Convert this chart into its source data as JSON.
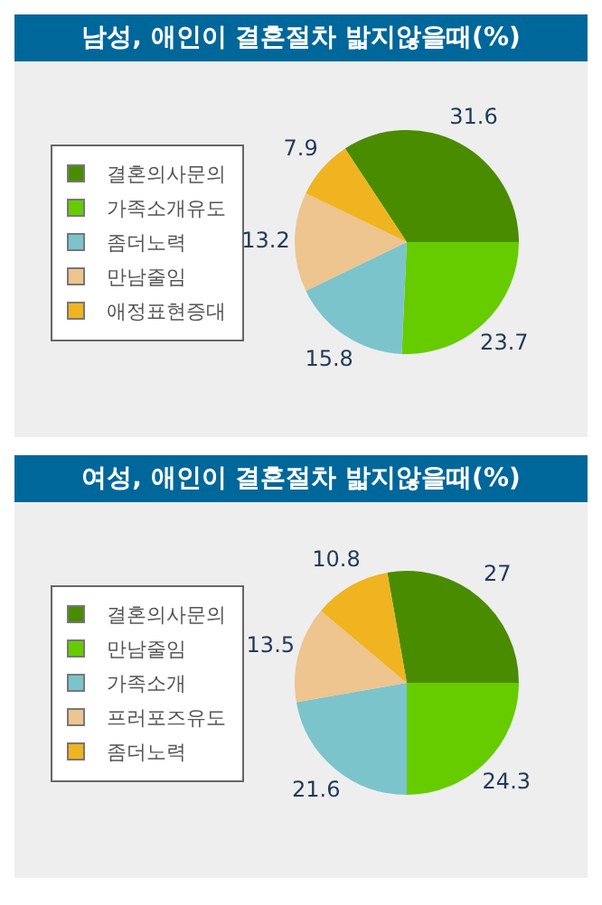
{
  "chart_data": [
    {
      "type": "pie",
      "title": "남성, 애인이 결혼절차 밟지않을때(%)",
      "categories": [
        "결혼의사문의",
        "가족소개유도",
        "좀더노력",
        "만남줄임",
        "애정표현증대"
      ],
      "values": [
        31.6,
        23.7,
        15.8,
        13.2,
        7.9
      ],
      "colors": [
        "#4a8c00",
        "#66cc00",
        "#7cc4cc",
        "#eec48f",
        "#f0b420"
      ],
      "data_labels": true,
      "legend": "left"
    },
    {
      "type": "pie",
      "title": "여성, 애인이 결혼절차 밟지않을때(%)",
      "categories": [
        "결혼의사문의",
        "만남줄임",
        "가족소개",
        "프러포즈유도",
        "좀더노력"
      ],
      "values": [
        27,
        24.3,
        21.6,
        13.5,
        10.8
      ],
      "colors": [
        "#4a8c00",
        "#66cc00",
        "#7cc4cc",
        "#eec48f",
        "#f0b420"
      ],
      "data_labels": true,
      "legend": "left"
    }
  ]
}
